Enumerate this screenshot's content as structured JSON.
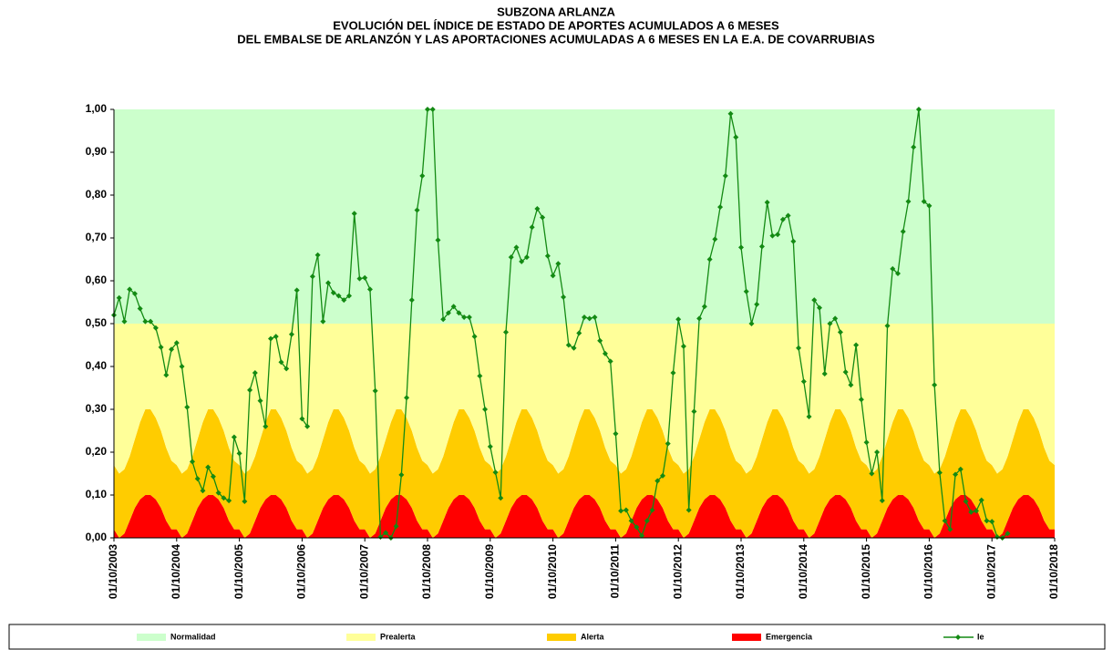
{
  "chart_data": {
    "type": "area",
    "title": [
      "SUBZONA ARLANZA",
      "EVOLUCIÓN DEL ÍNDICE DE ESTADO DE APORTES ACUMULADOS A 6 MESES",
      "DEL EMBALSE DE ARLANZÓN Y LAS APORTACIONES ACUMULADAS A 6 MESES EN LA E.A. DE COVARRUBIAS"
    ],
    "stacked": true,
    "grid": false,
    "legend": "bottom",
    "ylim": [
      0,
      1
    ],
    "yticks": [
      {
        "value": 0,
        "label": "0,00"
      },
      {
        "value": 0.1,
        "label": "0,10"
      },
      {
        "value": 0.2,
        "label": "0,20"
      },
      {
        "value": 0.3,
        "label": "0,30"
      },
      {
        "value": 0.4,
        "label": "0,40"
      },
      {
        "value": 0.5,
        "label": "0,50"
      },
      {
        "value": 0.6,
        "label": "0,60"
      },
      {
        "value": 0.7,
        "label": "0,70"
      },
      {
        "value": 0.8,
        "label": "0,80"
      },
      {
        "value": 0.9,
        "label": "0,90"
      },
      {
        "value": 1,
        "label": "1,00"
      }
    ],
    "xticks": [
      "01/10/2003",
      "01/10/2004",
      "01/10/2005",
      "01/10/2006",
      "01/10/2007",
      "01/10/2008",
      "01/10/2009",
      "01/10/2010",
      "01/10/2011",
      "01/10/2012",
      "01/10/2013",
      "01/10/2014",
      "01/10/2015",
      "01/10/2016",
      "01/10/2017",
      "01/10/2018"
    ],
    "x": [
      "01/10/2003",
      "01/11/2003",
      "01/12/2003",
      "01/01/2004",
      "01/02/2004",
      "01/03/2004",
      "01/04/2004",
      "01/05/2004",
      "01/06/2004",
      "01/07/2004",
      "01/08/2004",
      "01/09/2004",
      "01/10/2004",
      "01/11/2004",
      "01/12/2004",
      "01/01/2005",
      "01/02/2005",
      "01/03/2005",
      "01/04/2005",
      "01/05/2005",
      "01/06/2005",
      "01/07/2005",
      "01/08/2005",
      "01/09/2005",
      "01/10/2005",
      "01/11/2005",
      "01/12/2005",
      "01/01/2006",
      "01/02/2006",
      "01/03/2006",
      "01/04/2006",
      "01/05/2006",
      "01/06/2006",
      "01/07/2006",
      "01/08/2006",
      "01/09/2006",
      "01/10/2006",
      "01/11/2006",
      "01/12/2006",
      "01/01/2007",
      "01/02/2007",
      "01/03/2007",
      "01/04/2007",
      "01/05/2007",
      "01/06/2007",
      "01/07/2007",
      "01/08/2007",
      "01/09/2007",
      "01/10/2007",
      "01/11/2007",
      "01/12/2007",
      "01/01/2008",
      "01/02/2008",
      "01/03/2008",
      "01/04/2008",
      "01/05/2008",
      "01/06/2008",
      "01/07/2008",
      "01/08/2008",
      "01/09/2008",
      "01/10/2008",
      "01/11/2008",
      "01/12/2008",
      "01/01/2009",
      "01/02/2009",
      "01/03/2009",
      "01/04/2009",
      "01/05/2009",
      "01/06/2009",
      "01/07/2009",
      "01/08/2009",
      "01/09/2009",
      "01/10/2009",
      "01/11/2009",
      "01/12/2009",
      "01/01/2010",
      "01/02/2010",
      "01/03/2010",
      "01/04/2010",
      "01/05/2010",
      "01/06/2010",
      "01/07/2010",
      "01/08/2010",
      "01/09/2010",
      "01/10/2010",
      "01/11/2010",
      "01/12/2010",
      "01/01/2011",
      "01/02/2011",
      "01/03/2011",
      "01/04/2011",
      "01/05/2011",
      "01/06/2011",
      "01/07/2011",
      "01/08/2011",
      "01/09/2011",
      "01/10/2011",
      "01/11/2011",
      "01/12/2011",
      "01/01/2012",
      "01/02/2012",
      "01/03/2012",
      "01/04/2012",
      "01/05/2012",
      "01/06/2012",
      "01/07/2012",
      "01/08/2012",
      "01/09/2012",
      "01/10/2012",
      "01/11/2012",
      "01/12/2012",
      "01/01/2013",
      "01/02/2013",
      "01/03/2013",
      "01/04/2013",
      "01/05/2013",
      "01/06/2013",
      "01/07/2013",
      "01/08/2013",
      "01/09/2013",
      "01/10/2013",
      "01/11/2013",
      "01/12/2013",
      "01/01/2014",
      "01/02/2014",
      "01/03/2014",
      "01/04/2014",
      "01/05/2014",
      "01/06/2014",
      "01/07/2014",
      "01/08/2014",
      "01/09/2014",
      "01/10/2014",
      "01/11/2014",
      "01/12/2014",
      "01/01/2015",
      "01/02/2015",
      "01/03/2015",
      "01/04/2015",
      "01/05/2015",
      "01/06/2015",
      "01/07/2015",
      "01/08/2015",
      "01/09/2015",
      "01/10/2015",
      "01/11/2015",
      "01/12/2015",
      "01/01/2016",
      "01/02/2016",
      "01/03/2016",
      "01/04/2016",
      "01/05/2016",
      "01/06/2016",
      "01/07/2016",
      "01/08/2016",
      "01/09/2016",
      "01/10/2016",
      "01/11/2016",
      "01/12/2016",
      "01/01/2017",
      "01/02/2017",
      "01/03/2017",
      "01/04/2017",
      "01/05/2017",
      "01/06/2017",
      "01/07/2017",
      "01/08/2017",
      "01/09/2017",
      "01/10/2017",
      "01/11/2017",
      "01/12/2017",
      "01/01/2018",
      "01/02/2018",
      "01/03/2018",
      "01/04/2018",
      "01/05/2018",
      "01/06/2018",
      "01/07/2018",
      "01/08/2018",
      "01/09/2018",
      "01/10/2018"
    ],
    "series": [
      {
        "name": "Normalidad",
        "color": "#ccffcc",
        "values": [
          0.5,
          0.5,
          0.5,
          0.5,
          0.5,
          0.5,
          0.5,
          0.5,
          0.5,
          0.5,
          0.5,
          0.5,
          0.5,
          0.5,
          0.5,
          0.5,
          0.5,
          0.5,
          0.5,
          0.5,
          0.5,
          0.5,
          0.5,
          0.5,
          0.5,
          0.5,
          0.5,
          0.5,
          0.5,
          0.5,
          0.5,
          0.5,
          0.5,
          0.5,
          0.5,
          0.5,
          0.5,
          0.5,
          0.5,
          0.5,
          0.5,
          0.5,
          0.5,
          0.5,
          0.5,
          0.5,
          0.5,
          0.5,
          0.5,
          0.5,
          0.5,
          0.5,
          0.5,
          0.5,
          0.5,
          0.5,
          0.5,
          0.5,
          0.5,
          0.5,
          0.5,
          0.5,
          0.5,
          0.5,
          0.5,
          0.5,
          0.5,
          0.5,
          0.5,
          0.5,
          0.5,
          0.5,
          0.5,
          0.5,
          0.5,
          0.5,
          0.5,
          0.5,
          0.5,
          0.5,
          0.5,
          0.5,
          0.5,
          0.5,
          0.5,
          0.5,
          0.5,
          0.5,
          0.5,
          0.5,
          0.5,
          0.5,
          0.5,
          0.5,
          0.5,
          0.5,
          0.5,
          0.5,
          0.5,
          0.5,
          0.5,
          0.5,
          0.5,
          0.5,
          0.5,
          0.5,
          0.5,
          0.5,
          0.5,
          0.5,
          0.5,
          0.5,
          0.5,
          0.5,
          0.5,
          0.5,
          0.5,
          0.5,
          0.5,
          0.5,
          0.5,
          0.5,
          0.5,
          0.5,
          0.5,
          0.5,
          0.5,
          0.5,
          0.5,
          0.5,
          0.5,
          0.5,
          0.5,
          0.5,
          0.5,
          0.5,
          0.5,
          0.5,
          0.5,
          0.5,
          0.5,
          0.5,
          0.5,
          0.5,
          0.5,
          0.5,
          0.5,
          0.5,
          0.5,
          0.5,
          0.5,
          0.5,
          0.5,
          0.5,
          0.5,
          0.5,
          0.5,
          0.5,
          0.5,
          0.5,
          0.5,
          0.5,
          0.5,
          0.5,
          0.5,
          0.5,
          0.5,
          0.5,
          0.5,
          0.5,
          0.5,
          0.5,
          0.5,
          0.5,
          0.5,
          0.5,
          0.5,
          0.5,
          0.5,
          0.5,
          0.5
        ]
      },
      {
        "name": "Prealerta",
        "color": "#ffff99",
        "values": [
          0.33,
          0.35,
          0.34,
          0.31,
          0.27,
          0.23,
          0.2,
          0.2,
          0.22,
          0.25,
          0.29,
          0.32,
          0.33,
          0.35,
          0.34,
          0.31,
          0.27,
          0.23,
          0.2,
          0.2,
          0.22,
          0.25,
          0.29,
          0.32,
          0.33,
          0.35,
          0.34,
          0.31,
          0.27,
          0.23,
          0.2,
          0.2,
          0.22,
          0.25,
          0.29,
          0.32,
          0.33,
          0.35,
          0.34,
          0.31,
          0.27,
          0.23,
          0.2,
          0.2,
          0.22,
          0.25,
          0.29,
          0.32,
          0.33,
          0.35,
          0.34,
          0.31,
          0.27,
          0.23,
          0.2,
          0.2,
          0.22,
          0.25,
          0.29,
          0.32,
          0.33,
          0.35,
          0.34,
          0.31,
          0.27,
          0.23,
          0.2,
          0.2,
          0.22,
          0.25,
          0.29,
          0.32,
          0.33,
          0.35,
          0.34,
          0.31,
          0.27,
          0.23,
          0.2,
          0.2,
          0.22,
          0.25,
          0.29,
          0.32,
          0.33,
          0.35,
          0.34,
          0.31,
          0.27,
          0.23,
          0.2,
          0.2,
          0.22,
          0.25,
          0.29,
          0.32,
          0.33,
          0.35,
          0.34,
          0.31,
          0.27,
          0.23,
          0.2,
          0.2,
          0.22,
          0.25,
          0.29,
          0.32,
          0.33,
          0.35,
          0.34,
          0.31,
          0.27,
          0.23,
          0.2,
          0.2,
          0.22,
          0.25,
          0.29,
          0.32,
          0.33,
          0.35,
          0.34,
          0.31,
          0.27,
          0.23,
          0.2,
          0.2,
          0.22,
          0.25,
          0.29,
          0.32,
          0.33,
          0.35,
          0.34,
          0.31,
          0.27,
          0.23,
          0.2,
          0.2,
          0.22,
          0.25,
          0.29,
          0.32,
          0.33,
          0.35,
          0.34,
          0.31,
          0.27,
          0.23,
          0.2,
          0.2,
          0.22,
          0.25,
          0.29,
          0.32,
          0.33,
          0.35,
          0.34,
          0.31,
          0.27,
          0.23,
          0.2,
          0.2,
          0.22,
          0.25,
          0.29,
          0.32,
          0.33,
          0.35,
          0.34,
          0.31,
          0.27,
          0.23,
          0.2,
          0.2,
          0.22,
          0.25,
          0.29,
          0.32,
          0.33
        ]
      },
      {
        "name": "Alerta",
        "color": "#ffcc00",
        "values": [
          0.15,
          0.15,
          0.15,
          0.15,
          0.16,
          0.18,
          0.2,
          0.2,
          0.19,
          0.18,
          0.17,
          0.16,
          0.15,
          0.15,
          0.15,
          0.15,
          0.16,
          0.18,
          0.2,
          0.2,
          0.19,
          0.18,
          0.17,
          0.16,
          0.15,
          0.15,
          0.15,
          0.15,
          0.16,
          0.18,
          0.2,
          0.2,
          0.19,
          0.18,
          0.17,
          0.16,
          0.15,
          0.15,
          0.15,
          0.15,
          0.16,
          0.18,
          0.2,
          0.2,
          0.19,
          0.18,
          0.17,
          0.16,
          0.15,
          0.15,
          0.15,
          0.15,
          0.16,
          0.18,
          0.2,
          0.2,
          0.19,
          0.18,
          0.17,
          0.16,
          0.15,
          0.15,
          0.15,
          0.15,
          0.16,
          0.18,
          0.2,
          0.2,
          0.19,
          0.18,
          0.17,
          0.16,
          0.15,
          0.15,
          0.15,
          0.15,
          0.16,
          0.18,
          0.2,
          0.2,
          0.19,
          0.18,
          0.17,
          0.16,
          0.15,
          0.15,
          0.15,
          0.15,
          0.16,
          0.18,
          0.2,
          0.2,
          0.19,
          0.18,
          0.17,
          0.16,
          0.15,
          0.15,
          0.15,
          0.15,
          0.16,
          0.18,
          0.2,
          0.2,
          0.19,
          0.18,
          0.17,
          0.16,
          0.15,
          0.15,
          0.15,
          0.15,
          0.16,
          0.18,
          0.2,
          0.2,
          0.19,
          0.18,
          0.17,
          0.16,
          0.15,
          0.15,
          0.15,
          0.15,
          0.16,
          0.18,
          0.2,
          0.2,
          0.19,
          0.18,
          0.17,
          0.16,
          0.15,
          0.15,
          0.15,
          0.15,
          0.16,
          0.18,
          0.2,
          0.2,
          0.19,
          0.18,
          0.17,
          0.16,
          0.15,
          0.15,
          0.15,
          0.15,
          0.16,
          0.18,
          0.2,
          0.2,
          0.19,
          0.18,
          0.17,
          0.16,
          0.15,
          0.15,
          0.15,
          0.15,
          0.16,
          0.18,
          0.2,
          0.2,
          0.19,
          0.18,
          0.17,
          0.16,
          0.15,
          0.15,
          0.15,
          0.15,
          0.16,
          0.18,
          0.2,
          0.2,
          0.19,
          0.18,
          0.17,
          0.16,
          0.15
        ]
      },
      {
        "name": "Emergencia",
        "color": "#ff0000",
        "values": [
          0.02,
          0,
          0.01,
          0.04,
          0.07,
          0.09,
          0.1,
          0.1,
          0.09,
          0.07,
          0.04,
          0.02,
          0.02,
          0,
          0.01,
          0.04,
          0.07,
          0.09,
          0.1,
          0.1,
          0.09,
          0.07,
          0.04,
          0.02,
          0.02,
          0,
          0.01,
          0.04,
          0.07,
          0.09,
          0.1,
          0.1,
          0.09,
          0.07,
          0.04,
          0.02,
          0.02,
          0,
          0.01,
          0.04,
          0.07,
          0.09,
          0.1,
          0.1,
          0.09,
          0.07,
          0.04,
          0.02,
          0.02,
          0,
          0.01,
          0.04,
          0.07,
          0.09,
          0.1,
          0.1,
          0.09,
          0.07,
          0.04,
          0.02,
          0.02,
          0,
          0.01,
          0.04,
          0.07,
          0.09,
          0.1,
          0.1,
          0.09,
          0.07,
          0.04,
          0.02,
          0.02,
          0,
          0.01,
          0.04,
          0.07,
          0.09,
          0.1,
          0.1,
          0.09,
          0.07,
          0.04,
          0.02,
          0.02,
          0,
          0.01,
          0.04,
          0.07,
          0.09,
          0.1,
          0.1,
          0.09,
          0.07,
          0.04,
          0.02,
          0.02,
          0,
          0.01,
          0.04,
          0.07,
          0.09,
          0.1,
          0.1,
          0.09,
          0.07,
          0.04,
          0.02,
          0.02,
          0,
          0.01,
          0.04,
          0.07,
          0.09,
          0.1,
          0.1,
          0.09,
          0.07,
          0.04,
          0.02,
          0.02,
          0,
          0.01,
          0.04,
          0.07,
          0.09,
          0.1,
          0.1,
          0.09,
          0.07,
          0.04,
          0.02,
          0.02,
          0,
          0.01,
          0.04,
          0.07,
          0.09,
          0.1,
          0.1,
          0.09,
          0.07,
          0.04,
          0.02,
          0.02,
          0,
          0.01,
          0.04,
          0.07,
          0.09,
          0.1,
          0.1,
          0.09,
          0.07,
          0.04,
          0.02,
          0.02,
          0,
          0.01,
          0.04,
          0.07,
          0.09,
          0.1,
          0.1,
          0.09,
          0.07,
          0.04,
          0.02,
          0.02,
          0,
          0.01,
          0.04,
          0.07,
          0.09,
          0.1,
          0.1,
          0.09,
          0.07,
          0.04,
          0.02,
          0.02
        ]
      },
      {
        "name": "Ie",
        "type": "line",
        "color": "#138a13",
        "values": [
          0.52,
          0.56,
          0.505,
          0.58,
          0.57,
          0.535,
          0.505,
          0.505,
          0.49,
          0.445,
          0.38,
          0.44,
          0.455,
          0.4,
          0.305,
          0.178,
          0.138,
          0.11,
          0.165,
          0.143,
          0.105,
          0.093,
          0.087,
          0.235,
          0.197,
          0.085,
          0.345,
          0.385,
          0.32,
          0.26,
          0.465,
          0.47,
          0.41,
          0.395,
          0.475,
          0.578,
          0.278,
          0.26,
          0.61,
          0.66,
          0.505,
          0.595,
          0.572,
          0.565,
          0.555,
          0.565,
          0.757,
          0.605,
          0.607,
          0.58,
          0.343,
          0.002,
          0.012,
          0,
          0.027,
          0.147,
          0.327,
          0.555,
          0.765,
          0.845,
          1,
          1,
          0.695,
          0.51,
          0.525,
          0.54,
          0.525,
          0.515,
          0.515,
          0.47,
          0.378,
          0.3,
          0.213,
          0.153,
          0.093,
          0.48,
          0.655,
          0.678,
          0.645,
          0.655,
          0.725,
          0.768,
          0.748,
          0.658,
          0.612,
          0.64,
          0.562,
          0.45,
          0.443,
          0.478,
          0.515,
          0.512,
          0.515,
          0.46,
          0.43,
          0.412,
          0.243,
          0.063,
          0.065,
          0.04,
          0.025,
          0.005,
          0.04,
          0.065,
          0.133,
          0.145,
          0.22,
          0.385,
          0.51,
          0.447,
          0.065,
          0.295,
          0.512,
          0.54,
          0.65,
          0.697,
          0.772,
          0.845,
          0.99,
          0.935,
          0.678,
          0.575,
          0.5,
          0.545,
          0.68,
          0.783,
          0.705,
          0.708,
          0.743,
          0.752,
          0.692,
          0.443,
          0.365,
          0.283,
          0.555,
          0.537,
          0.383,
          0.5,
          0.512,
          0.48,
          0.387,
          0.357,
          0.45,
          0.323,
          0.223,
          0.15,
          0.2,
          0.087,
          0.495,
          0.628,
          0.617,
          0.715,
          0.785,
          0.912,
          1,
          0.785,
          0.775,
          0.357,
          0.152,
          0.04,
          0.02,
          0.148,
          0.16,
          0.085,
          0.06,
          0.063,
          0.088,
          0.04,
          0.038,
          0.002,
          0,
          0.01,
          null,
          null,
          null,
          null,
          null,
          null,
          null,
          null,
          null
        ]
      }
    ]
  }
}
